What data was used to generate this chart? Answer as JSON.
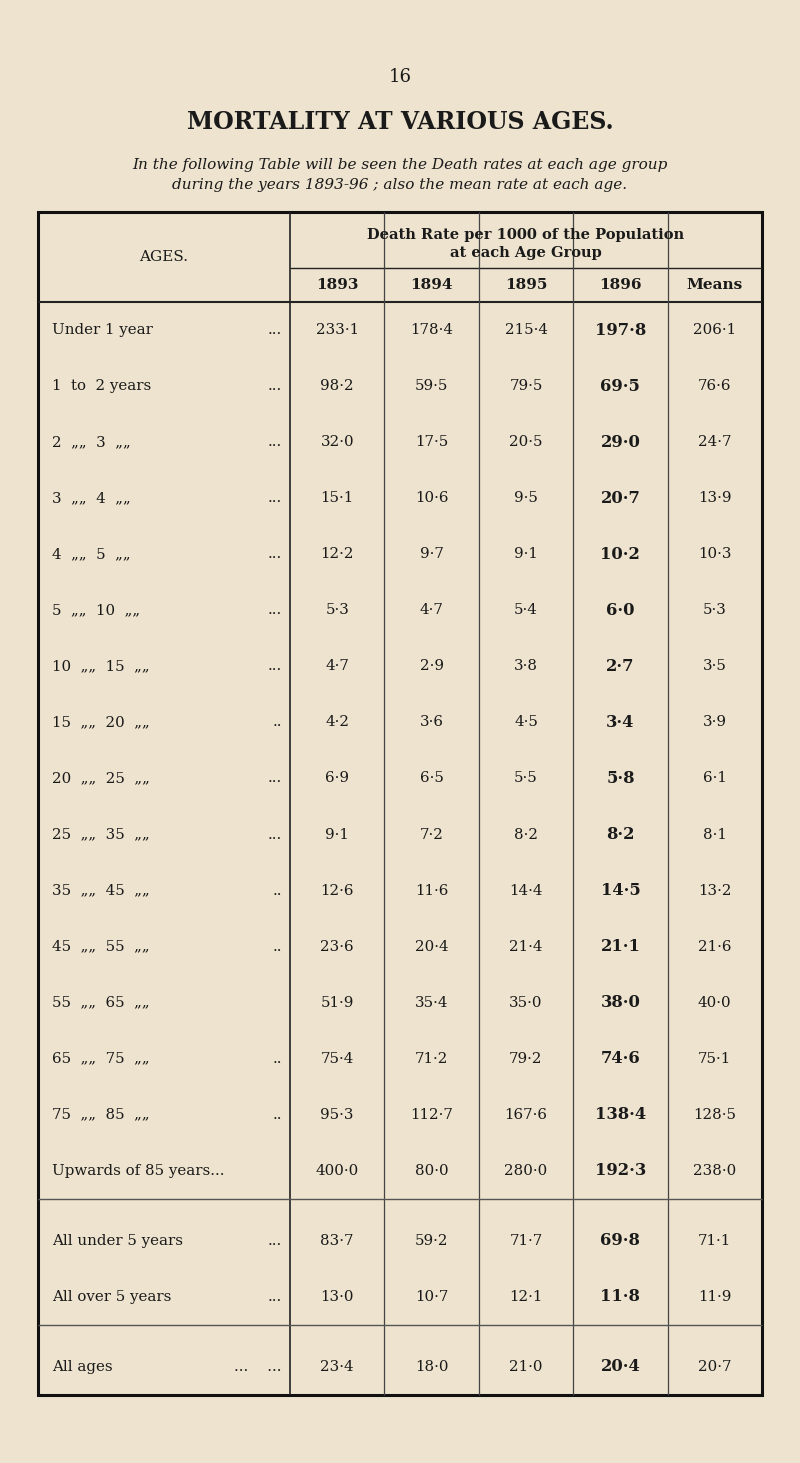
{
  "page_number": "16",
  "title": "MORTALITY AT VARIOUS AGES.",
  "intro_line1": "In the following Table will be seen the Death rates at each age group",
  "intro_line2": "during the years 1893-96 ; also the mean rate at each age.",
  "table_header_top1": "Death Rate per 1000 of the Population",
  "table_header_top2": "at each Age Group",
  "col_headers": [
    "1893",
    "1894",
    "1895",
    "1896",
    "Means"
  ],
  "ages_label": "AGES.",
  "rows": [
    {
      "age": "Under 1 year",
      "dots": "...",
      "v1893": "233·1",
      "v1894": "178·4",
      "v1895": "215·4",
      "v1896": "197·8",
      "means": "206·1"
    },
    {
      "age": "1  to  2 years",
      "dots": "...",
      "v1893": "98·2",
      "v1894": "59·5",
      "v1895": "79·5",
      "v1896": "69·5",
      "means": "76·6"
    },
    {
      "age": "2  „„  3  „„",
      "dots": "...",
      "v1893": "32·0",
      "v1894": "17·5",
      "v1895": "20·5",
      "v1896": "29·0",
      "means": "24·7"
    },
    {
      "age": "3  „„  4  „„",
      "dots": "...",
      "v1893": "15·1",
      "v1894": "10·6",
      "v1895": "9·5",
      "v1896": "20·7",
      "means": "13·9"
    },
    {
      "age": "4  „„  5  „„",
      "dots": "...",
      "v1893": "12·2",
      "v1894": "9·7",
      "v1895": "9·1",
      "v1896": "10·2",
      "means": "10·3"
    },
    {
      "age": "5  „„  10  „„",
      "dots": "...",
      "v1893": "5·3",
      "v1894": "4·7",
      "v1895": "5·4",
      "v1896": "6·0",
      "means": "5·3"
    },
    {
      "age": "10  „„  15  „„",
      "dots": "...",
      "v1893": "4·7",
      "v1894": "2·9",
      "v1895": "3·8",
      "v1896": "2·7",
      "means": "3·5"
    },
    {
      "age": "15  „„  20  „„",
      "dots": "..",
      "v1893": "4·2",
      "v1894": "3·6",
      "v1895": "4·5",
      "v1896": "3·4",
      "means": "3·9"
    },
    {
      "age": "20  „„  25  „„",
      "dots": "...",
      "v1893": "6·9",
      "v1894": "6·5",
      "v1895": "5·5",
      "v1896": "5·8",
      "means": "6·1"
    },
    {
      "age": "25  „„  35  „„",
      "dots": "...",
      "v1893": "9·1",
      "v1894": "7·2",
      "v1895": "8·2",
      "v1896": "8·2",
      "means": "8·1"
    },
    {
      "age": "35  „„  45  „„",
      "dots": "..",
      "v1893": "12·6",
      "v1894": "11·6",
      "v1895": "14·4",
      "v1896": "14·5",
      "means": "13·2"
    },
    {
      "age": "45  „„  55  „„",
      "dots": "..",
      "v1893": "23·6",
      "v1894": "20·4",
      "v1895": "21·4",
      "v1896": "21·1",
      "means": "21·6"
    },
    {
      "age": "55  „„  65  „„",
      "dots": "",
      "v1893": "51·9",
      "v1894": "35·4",
      "v1895": "35·0",
      "v1896": "38·0",
      "means": "40·0"
    },
    {
      "age": "65  „„  75  „„",
      "dots": "..",
      "v1893": "75·4",
      "v1894": "71·2",
      "v1895": "79·2",
      "v1896": "74·6",
      "means": "75·1"
    },
    {
      "age": "75  „„  85  „„",
      "dots": "..",
      "v1893": "95·3",
      "v1894": "112·7",
      "v1895": "167·6",
      "v1896": "138·4",
      "means": "128·5"
    },
    {
      "age": "Upwards of 85 years...",
      "dots": "",
      "v1893": "400·0",
      "v1894": "80·0",
      "v1895": "280·0",
      "v1896": "192·3",
      "means": "238·0"
    }
  ],
  "summary_rows": [
    {
      "age": "All under 5 years",
      "dots": "...",
      "v1893": "83·7",
      "v1894": "59·2",
      "v1895": "71·7",
      "v1896": "69·8",
      "means": "71·1"
    },
    {
      "age": "All over 5 years",
      "dots": "...",
      "v1893": "13·0",
      "v1894": "10·7",
      "v1895": "12·1",
      "v1896": "11·8",
      "means": "11·9"
    }
  ],
  "total_row": {
    "age": "All ages",
    "dots": "...    ...",
    "v1893": "23·4",
    "v1894": "18·0",
    "v1895": "21·0",
    "v1896": "20·4",
    "means": "20·7"
  },
  "bg_color": "#ede3ce",
  "text_color": "#1a1a1a"
}
